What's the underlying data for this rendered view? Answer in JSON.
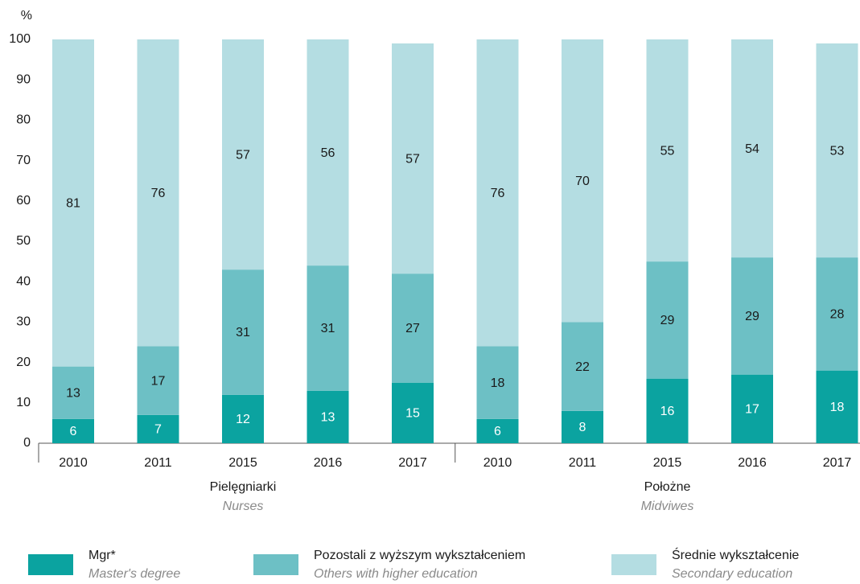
{
  "chart_data": {
    "type": "stacked_bar",
    "y_unit": "%",
    "groups": [
      {
        "name": "Pielęgniarki",
        "name_en": "Nurses",
        "categories": [
          "2010",
          "2011",
          "2015",
          "2016",
          "2017"
        ]
      },
      {
        "name": "Położne",
        "name_en": "Midviwes",
        "categories": [
          "2010",
          "2011",
          "2015",
          "2016",
          "2017"
        ]
      }
    ],
    "series": [
      {
        "name": "Mgr*",
        "name_en": "Master's degree",
        "color": "#0ba3a0",
        "values": [
          6,
          7,
          12,
          13,
          15,
          6,
          8,
          16,
          17,
          18
        ]
      },
      {
        "name": "Pozostali z wyższym wykształceniem",
        "name_en": "Others with higher education",
        "color": "#6dc0c5",
        "values": [
          13,
          17,
          31,
          31,
          27,
          18,
          22,
          29,
          29,
          28
        ]
      },
      {
        "name": "Średnie wykształcenie",
        "name_en": "Secondary education",
        "color": "#b4dde2",
        "values": [
          81,
          76,
          57,
          56,
          57,
          76,
          70,
          55,
          54,
          53
        ]
      }
    ],
    "ylim": [
      0,
      100
    ],
    "yticks": [
      0,
      10,
      20,
      30,
      40,
      50,
      60,
      70,
      80,
      90,
      100
    ]
  }
}
